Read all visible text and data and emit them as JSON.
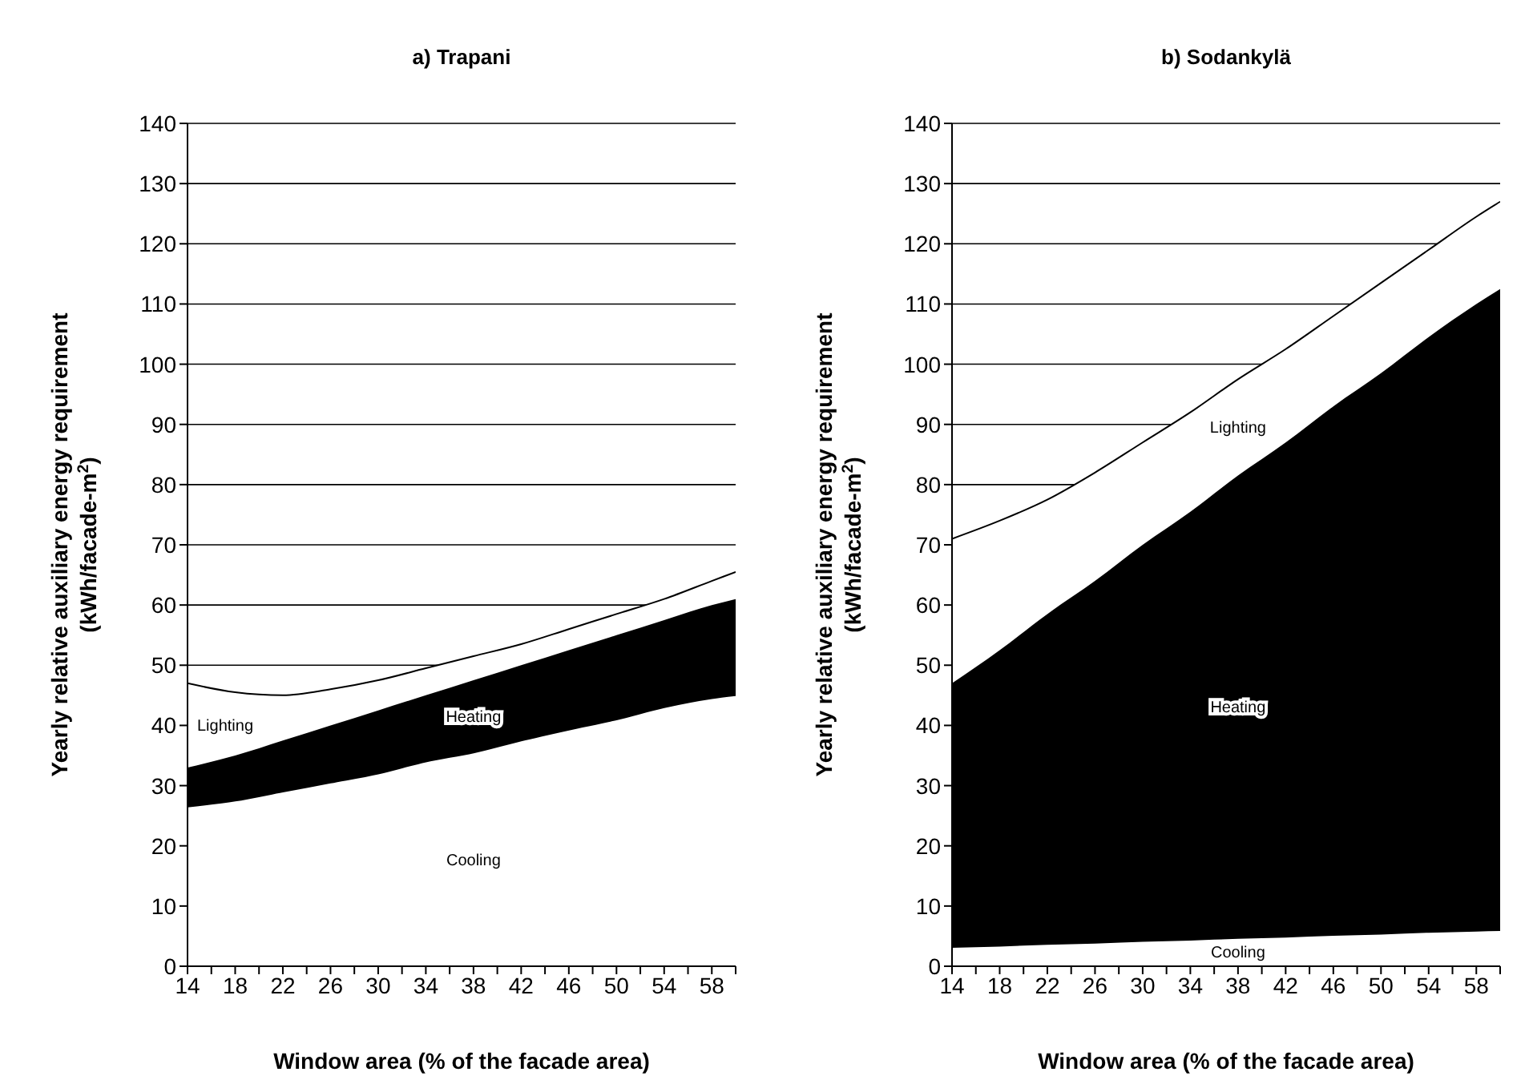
{
  "chart_data": [
    {
      "type": "area",
      "title": "a) Trapani",
      "xlabel": "Window area (% of the facade area)",
      "ylabel": "Yearly relative auxiliary energy requirement\n(kWh/facade-m$^{2}$)",
      "stacked": true,
      "grid": "y",
      "x": [
        14,
        18,
        22,
        26,
        30,
        34,
        38,
        42,
        46,
        50,
        54,
        58,
        60
      ],
      "series": [
        {
          "name": "Cooling",
          "color": "#ffffff",
          "values": [
            26.5,
            27.5,
            29,
            30.5,
            32,
            34,
            35.5,
            37.5,
            39.3,
            41,
            43,
            44.5,
            45
          ]
        },
        {
          "name": "Heating",
          "color": "#000000",
          "values": [
            6.5,
            7.5,
            8.5,
            9.5,
            10.5,
            11,
            12,
            12.5,
            13.2,
            14,
            14.5,
            15.5,
            16
          ]
        },
        {
          "name": "Lighting",
          "color": "#ffffff",
          "values": [
            14,
            10.5,
            7.5,
            6,
            5,
            4.5,
            4,
            3.5,
            3.5,
            3.5,
            3.5,
            4,
            4.5
          ]
        }
      ],
      "xlim": [
        14,
        60
      ],
      "xticks": [
        14,
        {
          "value": 16,
          "label": null
        },
        18,
        {
          "value": 20,
          "label": null
        },
        22,
        {
          "value": 24,
          "label": null
        },
        26,
        {
          "value": 28,
          "label": null
        },
        30,
        {
          "value": 32,
          "label": null
        },
        34,
        {
          "value": 36,
          "label": null
        },
        38,
        {
          "value": 40,
          "label": null
        },
        42,
        {
          "value": 44,
          "label": null
        },
        46,
        {
          "value": 48,
          "label": null
        },
        50,
        {
          "value": 52,
          "label": null
        },
        54,
        {
          "value": 56,
          "label": null
        },
        58,
        {
          "value": 60,
          "label": null
        }
      ],
      "ylim": [
        0,
        140
      ],
      "yticks": [
        0,
        10,
        20,
        30,
        40,
        50,
        60,
        70,
        80,
        90,
        100,
        110,
        120,
        130,
        140
      ]
    },
    {
      "type": "area",
      "title": "b) Sodankylä",
      "xlabel": "Window area (% of the facade area)",
      "ylabel": "Yearly relative auxiliary energy requirement\n(kWh/facade-m$^{2}$)",
      "stacked": true,
      "grid": "y",
      "x": [
        14,
        18,
        22,
        26,
        30,
        34,
        38,
        42,
        46,
        50,
        54,
        58,
        60
      ],
      "series": [
        {
          "name": "Cooling",
          "color": "#ffffff",
          "values": [
            3.2,
            3.4,
            3.7,
            3.9,
            4.2,
            4.4,
            4.7,
            4.9,
            5.2,
            5.4,
            5.7,
            5.9,
            6
          ]
        },
        {
          "name": "Heating",
          "color": "#000000",
          "values": [
            43.8,
            49.1,
            54.8,
            60.1,
            65.8,
            71.1,
            76.8,
            82.1,
            87.8,
            93.1,
            98.8,
            104.1,
            106.5
          ]
        },
        {
          "name": "Lighting",
          "color": "#ffffff",
          "values": [
            24,
            21.5,
            19,
            18,
            17,
            16.5,
            16,
            15.5,
            15,
            15,
            14.5,
            14.5,
            14.5
          ]
        }
      ],
      "xlim": [
        14,
        60
      ],
      "xticks": [
        14,
        {
          "value": 16,
          "label": null
        },
        18,
        {
          "value": 20,
          "label": null
        },
        22,
        {
          "value": 24,
          "label": null
        },
        26,
        {
          "value": 28,
          "label": null
        },
        30,
        {
          "value": 32,
          "label": null
        },
        34,
        {
          "value": 36,
          "label": null
        },
        38,
        {
          "value": 40,
          "label": null
        },
        42,
        {
          "value": 44,
          "label": null
        },
        46,
        {
          "value": 48,
          "label": null
        },
        50,
        {
          "value": 52,
          "label": null
        },
        54,
        {
          "value": 56,
          "label": null
        },
        58,
        {
          "value": 60,
          "label": null
        }
      ],
      "ylim": [
        0,
        140
      ],
      "yticks": [
        0,
        10,
        20,
        30,
        40,
        50,
        60,
        70,
        80,
        90,
        100,
        110,
        120,
        130,
        140
      ]
    }
  ]
}
